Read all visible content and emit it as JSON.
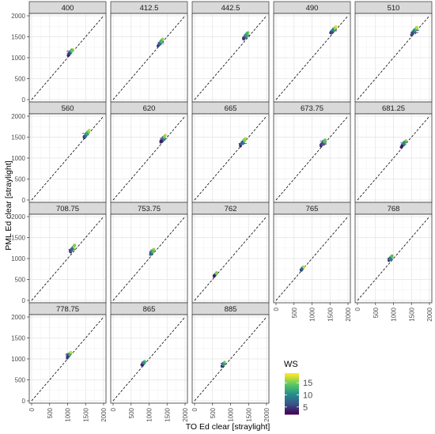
{
  "chart_data": {
    "type": "scatter",
    "facet_variable": "wavelength",
    "xlabel": "TO Ed clear [straylight]",
    "ylabel": "PML Ed  clear [straylight]",
    "xlim": [
      0,
      2000
    ],
    "ylim": [
      0,
      2000
    ],
    "x_ticks": [
      "0",
      "500",
      "1000",
      "1500",
      "2000"
    ],
    "y_ticks": [
      "0",
      "500",
      "1000",
      "1500",
      "2000"
    ],
    "reference_line": "y = x (dashed)",
    "grid": true,
    "color_variable": {
      "title": "WS",
      "range": [
        2,
        19
      ],
      "ticks": [
        "5",
        "10",
        "15"
      ],
      "tick_values": [
        5,
        10,
        15
      ],
      "palette": [
        "#440154",
        "#3b528b",
        "#21918c",
        "#5ec962",
        "#fde725"
      ]
    },
    "panels": [
      {
        "label": "400",
        "cx": 1080,
        "cy": 1130,
        "spread": 70
      },
      {
        "label": "412.5",
        "cx": 1320,
        "cy": 1370,
        "spread": 75
      },
      {
        "label": "442.5",
        "cx": 1430,
        "cy": 1530,
        "spread": 80
      },
      {
        "label": "490",
        "cx": 1580,
        "cy": 1650,
        "spread": 85
      },
      {
        "label": "510",
        "cx": 1580,
        "cy": 1640,
        "spread": 85
      },
      {
        "label": "560",
        "cx": 1520,
        "cy": 1560,
        "spread": 85
      },
      {
        "label": "620",
        "cx": 1390,
        "cy": 1460,
        "spread": 80
      },
      {
        "label": "665",
        "cx": 1340,
        "cy": 1380,
        "spread": 80
      },
      {
        "label": "673.75",
        "cx": 1310,
        "cy": 1370,
        "spread": 80
      },
      {
        "label": "681.25",
        "cx": 1280,
        "cy": 1340,
        "spread": 80
      },
      {
        "label": "708.75",
        "cx": 1130,
        "cy": 1230,
        "spread": 75
      },
      {
        "label": "753.75",
        "cx": 1080,
        "cy": 1150,
        "spread": 70
      },
      {
        "label": "762",
        "cx": 580,
        "cy": 620,
        "spread": 40
      },
      {
        "label": "765",
        "cx": 730,
        "cy": 760,
        "spread": 50
      },
      {
        "label": "768",
        "cx": 920,
        "cy": 1010,
        "spread": 60
      },
      {
        "label": "778.75",
        "cx": 1040,
        "cy": 1090,
        "spread": 65
      },
      {
        "label": "865",
        "cx": 850,
        "cy": 900,
        "spread": 55
      },
      {
        "label": "885",
        "cx": 800,
        "cy": 870,
        "spread": 50
      }
    ]
  }
}
